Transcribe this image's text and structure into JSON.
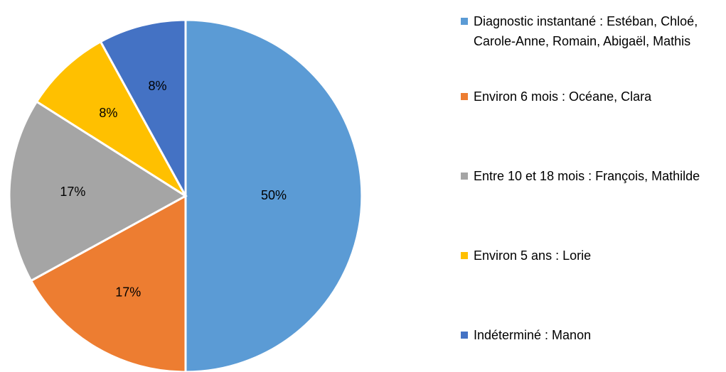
{
  "chart_data": {
    "type": "pie",
    "categories": [
      "Diagnostic instantané : Estéban, Chloé, Carole-Anne, Romain, Abigaël, Mathis",
      "Environ 6 mois : Océane, Clara",
      "Entre 10 et 18 mois : François, Mathilde",
      "Environ 5 ans : Lorie",
      "Indéterminé : Manon"
    ],
    "values": [
      50,
      17,
      17,
      8,
      8
    ],
    "value_labels": [
      "50%",
      "17%",
      "17%",
      "8%",
      "8%"
    ],
    "colors": [
      "#5b9bd5",
      "#ed7d31",
      "#a5a5a5",
      "#ffc000",
      "#4472c4"
    ],
    "legend": "right"
  }
}
